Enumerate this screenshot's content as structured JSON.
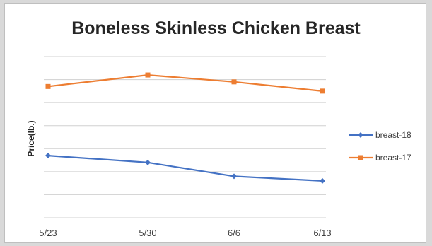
{
  "chart_data": {
    "type": "line",
    "title": "Boneless Skinless Chicken Breast",
    "xlabel": "",
    "ylabel": "Price(lb.)",
    "categories": [
      "5/23",
      "5/30",
      "6/6",
      "6/13"
    ],
    "grid": true,
    "legend_position": "right",
    "series": [
      {
        "name": "breast-18",
        "values": [
          2.7,
          2.4,
          1.8,
          1.6
        ],
        "color": "#4472c4",
        "marker": "diamond"
      },
      {
        "name": "breast-17",
        "values": [
          5.7,
          6.2,
          5.9,
          5.5
        ],
        "color": "#ed7d31",
        "marker": "square"
      }
    ],
    "ylim": [
      0,
      7
    ]
  }
}
